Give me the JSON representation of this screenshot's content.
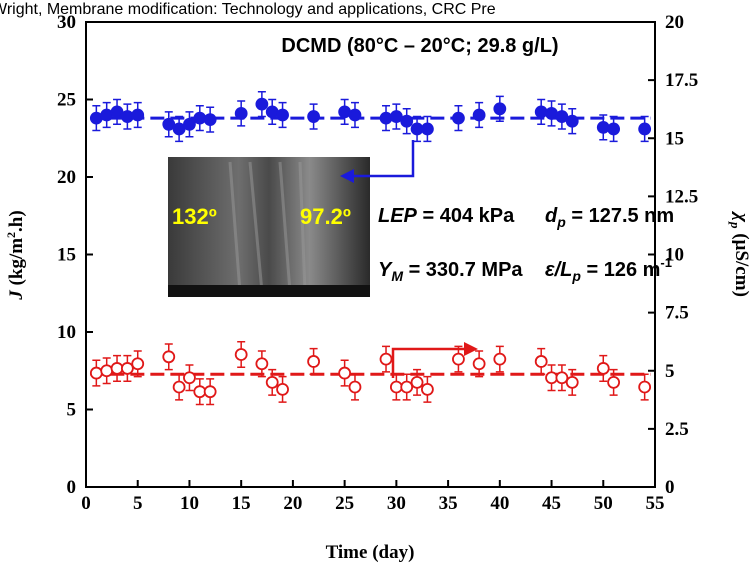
{
  "chart_data": {
    "type": "scatter",
    "source": "Wright, Membrane modification: Technology and applications, CRC Pre",
    "x_label": "Time (day)",
    "y_label": [
      "J",
      " (kg/m",
      "2",
      ".h)"
    ],
    "y2_label": [
      "χ",
      "p",
      " (µS/cm)"
    ],
    "annotations": [
      {
        "parts": [
          "DCMD (80°C – 20°C; 29.8 g/L)"
        ]
      },
      {
        "parts": [
          "LEP",
          " = 404 kPa"
        ]
      },
      {
        "parts": [
          "d",
          "p",
          " = 127.5 nm"
        ]
      },
      {
        "parts": [
          "Y",
          "M",
          " = 330.7 MPa"
        ]
      },
      {
        "parts": [
          "ε/L",
          "p",
          " = 126 m",
          "-1"
        ]
      },
      {
        "parts": [
          "132º"
        ]
      },
      {
        "parts": [
          "97.2º"
        ]
      }
    ],
    "x": [
      1,
      2,
      3,
      4,
      5,
      8,
      9,
      10,
      11,
      12,
      15,
      17,
      18,
      19,
      22,
      25,
      26,
      29,
      30,
      31,
      32,
      33,
      36,
      38,
      40,
      44,
      45,
      46,
      47,
      50,
      51,
      54
    ],
    "xlim": [
      0,
      55
    ],
    "xticks": [
      0,
      5,
      10,
      15,
      20,
      25,
      30,
      35,
      40,
      45,
      50,
      55
    ],
    "ylim": [
      0,
      30
    ],
    "yticks": [
      0,
      5,
      10,
      15,
      20,
      25,
      30
    ],
    "y2lim": [
      0,
      20
    ],
    "y2ticks": [
      0,
      2.5,
      5,
      7.5,
      10,
      12.5,
      15,
      17.5,
      20
    ],
    "series": [
      {
        "color": "#1a1adb",
        "marker": "filled",
        "mean": 23.8,
        "error": 0.8,
        "values": [
          23.8,
          24.0,
          24.2,
          23.9,
          24.0,
          23.4,
          23.1,
          23.4,
          23.8,
          23.7,
          24.1,
          24.7,
          24.2,
          24.0,
          23.9,
          24.2,
          24.0,
          23.8,
          23.9,
          23.6,
          23.1,
          23.1,
          23.8,
          24.0,
          24.4,
          24.2,
          24.1,
          23.9,
          23.6,
          23.2,
          23.1,
          23.1
        ]
      },
      {
        "color": "#e01818",
        "marker": "open",
        "axis": "y2",
        "mean": 4.85,
        "error": 0.55,
        "values": [
          4.9,
          5.0,
          5.1,
          5.1,
          5.3,
          5.6,
          4.3,
          4.7,
          4.1,
          4.1,
          5.7,
          5.3,
          4.5,
          4.2,
          5.4,
          4.9,
          4.3,
          5.5,
          4.3,
          4.3,
          4.5,
          4.2,
          5.5,
          5.3,
          5.5,
          5.4,
          4.7,
          4.7,
          4.5,
          5.1,
          4.5,
          4.3
        ]
      }
    ]
  }
}
